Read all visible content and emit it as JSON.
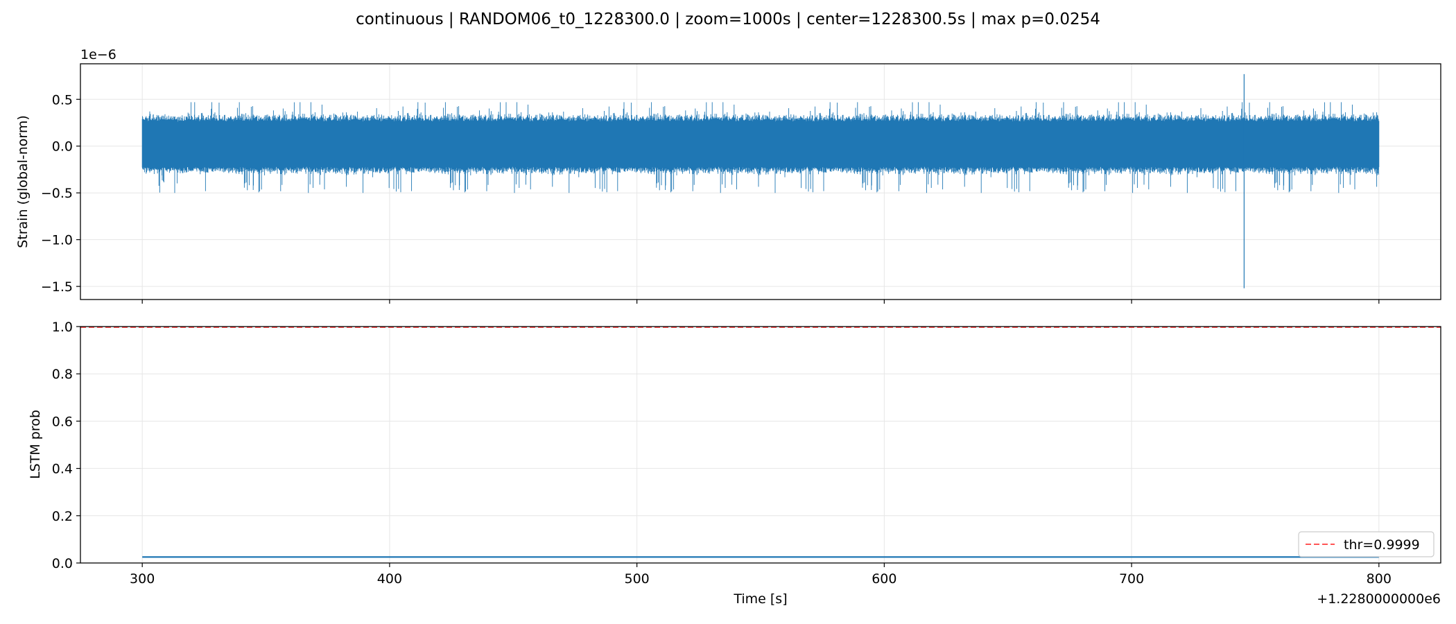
{
  "figure": {
    "title": "continuous | RANDOM06_t0_1228300.0 | zoom=1000s | center=1228300.5s | max p=0.0254"
  },
  "chart_data": [
    {
      "type": "line",
      "panel": "strain",
      "ylabel": "Strain (global-norm)",
      "offset_text": "1e−6",
      "xlim": [
        275,
        825
      ],
      "ylim": [
        -1.64,
        0.88
      ],
      "xticks": [
        300,
        400,
        500,
        600,
        700,
        800
      ],
      "yticks": [
        0.5,
        0.0,
        -0.5,
        -1.0,
        -1.5
      ],
      "ytick_labels": [
        "0.5",
        "0.0",
        "−0.5",
        "−1.0",
        "−1.5"
      ],
      "grid": true,
      "series": [
        {
          "color": "#1f77b4",
          "x_range": [
            300,
            800
          ],
          "typical_envelope": [
            -0.22,
            0.26
          ],
          "peak_max": 0.47,
          "peak_min": -0.5,
          "spikes": [
            {
              "x": 745.5,
              "y_max": 0.77,
              "y_min": -1.52
            }
          ]
        }
      ]
    },
    {
      "type": "line",
      "panel": "probability",
      "ylabel": "LSTM prob",
      "xlabel": "Time [s]",
      "offset_text": "+1.2280000000e6",
      "xlim": [
        275,
        825
      ],
      "ylim": [
        0.0,
        1.0
      ],
      "xticks": [
        300,
        400,
        500,
        600,
        700,
        800
      ],
      "xtick_labels": [
        "300",
        "400",
        "500",
        "600",
        "700",
        "800"
      ],
      "yticks": [
        0.0,
        0.2,
        0.4,
        0.6,
        0.8,
        1.0
      ],
      "ytick_labels": [
        "0.0",
        "0.2",
        "0.4",
        "0.6",
        "0.8",
        "1.0"
      ],
      "grid": true,
      "legend": {
        "location": "lower-right"
      },
      "series": [
        {
          "color": "#1f77b4",
          "x": [
            300,
            800
          ],
          "y": [
            0.0254,
            0.0254
          ]
        },
        {
          "name": "thr=0.9999",
          "style": "dashed",
          "color": "#ff5555",
          "y": 0.9999
        }
      ]
    }
  ]
}
